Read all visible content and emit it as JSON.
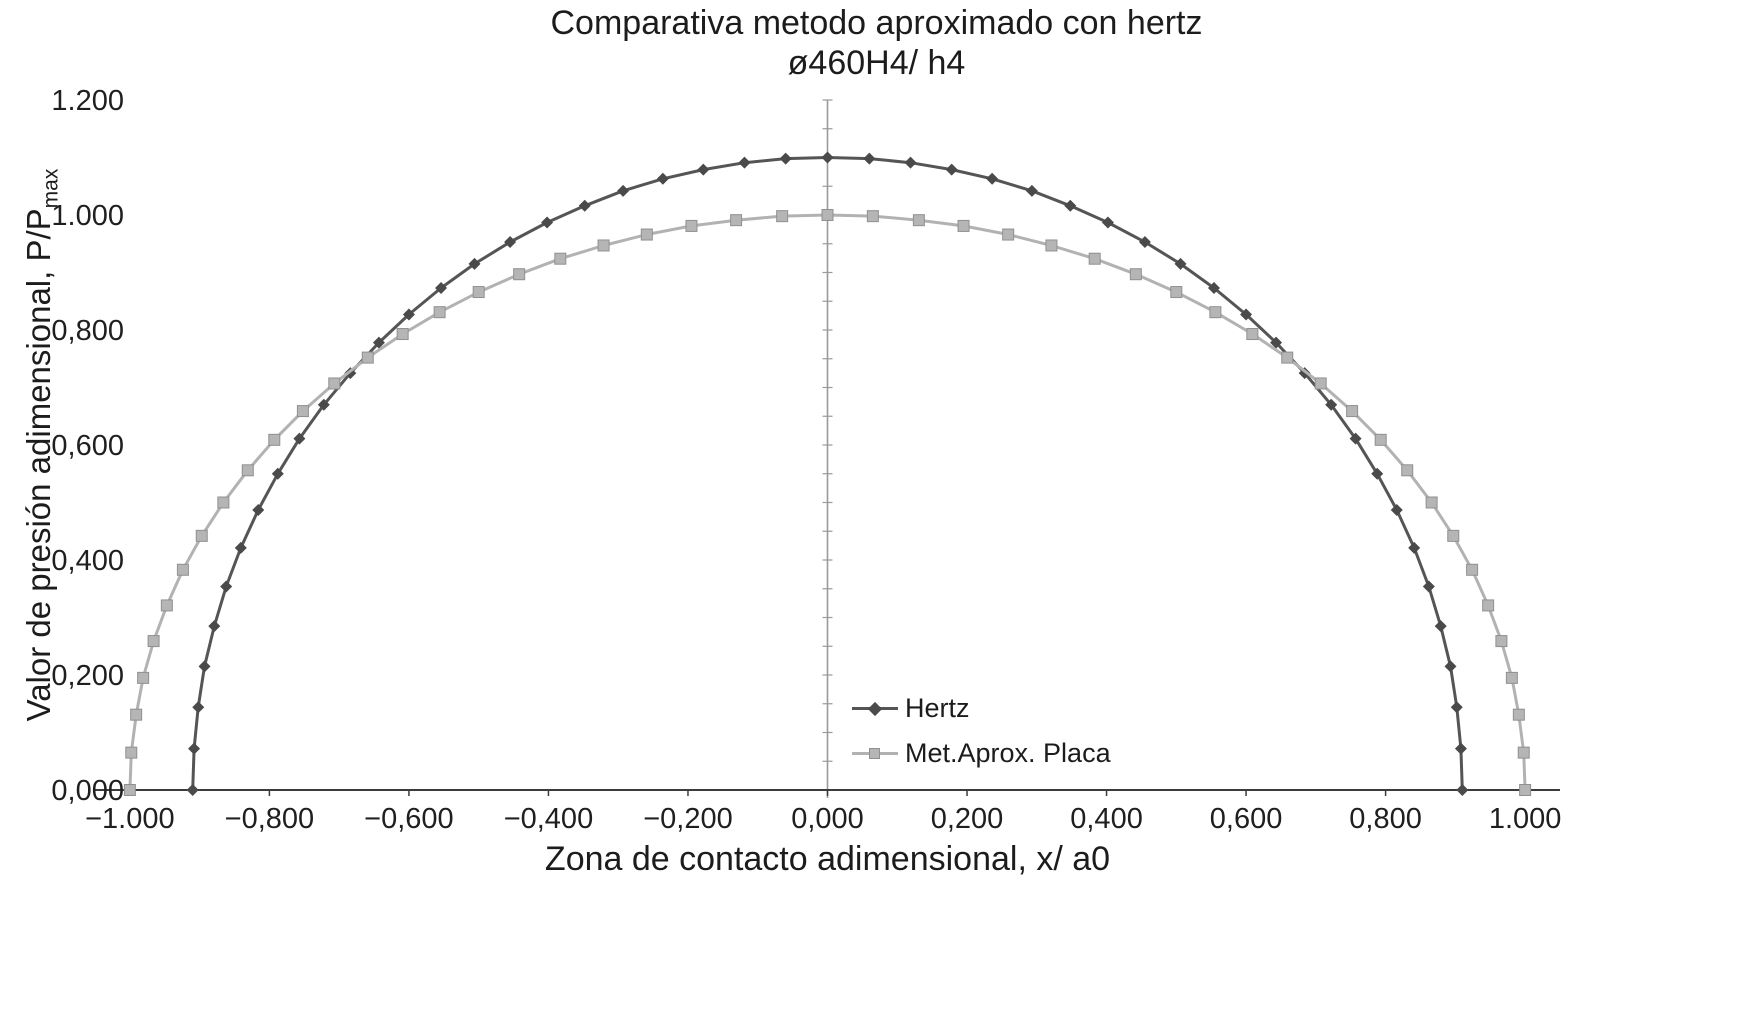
{
  "page": {
    "background": "#ffffff"
  },
  "chart_data": {
    "type": "line",
    "title": "Comparativa metodo aproximado con hertz",
    "subtitle": "ø460H4/ h4",
    "xlabel": "Zona de contacto adimensional, x/ a0",
    "ylabel": "Valor de presión adimensional, P/Pmax",
    "ylabel_main": "Valor de presión adimensional, P/P",
    "ylabel_sub": "max",
    "xlim": [
      -1.05,
      1.05
    ],
    "ylim": [
      0,
      1.2
    ],
    "grid": false,
    "legend_position": "inside plot, right of center vertical axis, lower area",
    "axis_colors": {
      "x_axis": "#3c3c3c",
      "y_axis_center_line": "#9a9a9a"
    },
    "x_ticks": [
      {
        "label": "−1.000",
        "value": -1.0
      },
      {
        "label": "−0,800",
        "value": -0.8
      },
      {
        "label": "−0,600",
        "value": -0.6
      },
      {
        "label": "−0,400",
        "value": -0.4
      },
      {
        "label": "−0,200",
        "value": -0.2
      },
      {
        "label": "0,000",
        "value": 0.0
      },
      {
        "label": "0,200",
        "value": 0.2
      },
      {
        "label": "0,400",
        "value": 0.4
      },
      {
        "label": "0,600",
        "value": 0.6
      },
      {
        "label": "0,800",
        "value": 0.8
      },
      {
        "label": "1.000",
        "value": 1.0
      }
    ],
    "y_ticks": [
      {
        "label": "1.200",
        "value": 1.2
      },
      {
        "label": "1.000",
        "value": 1.0
      },
      {
        "label": "0,800",
        "value": 0.8
      },
      {
        "label": "0,600",
        "value": 0.6
      },
      {
        "label": "0,400",
        "value": 0.4
      },
      {
        "label": "0,200",
        "value": 0.2
      },
      {
        "label": "0,000",
        "value": 0.0
      }
    ],
    "series": [
      {
        "name": "Hertz",
        "color": "#555555",
        "marker": "diamond",
        "marker_color": "#4a4a4a",
        "peak_value": 1.1,
        "contact_half_width": 0.91,
        "points": [
          [
            -0.91,
            0.0
          ],
          [
            -0.908,
            0.072
          ],
          [
            -0.902,
            0.144
          ],
          [
            -0.893,
            0.215
          ],
          [
            -0.879,
            0.285
          ],
          [
            -0.862,
            0.354
          ],
          [
            -0.841,
            0.421
          ],
          [
            -0.816,
            0.487
          ],
          [
            -0.788,
            0.55
          ],
          [
            -0.757,
            0.611
          ],
          [
            -0.722,
            0.67
          ],
          [
            -0.684,
            0.725
          ],
          [
            -0.643,
            0.778
          ],
          [
            -0.6,
            0.827
          ],
          [
            -0.554,
            0.873
          ],
          [
            -0.506,
            0.915
          ],
          [
            -0.455,
            0.953
          ],
          [
            -0.402,
            0.987
          ],
          [
            -0.348,
            1.016
          ],
          [
            -0.293,
            1.042
          ],
          [
            -0.236,
            1.063
          ],
          [
            -0.178,
            1.079
          ],
          [
            -0.119,
            1.091
          ],
          [
            -0.06,
            1.098
          ],
          [
            0.0,
            1.1
          ],
          [
            0.06,
            1.098
          ],
          [
            0.119,
            1.091
          ],
          [
            0.178,
            1.079
          ],
          [
            0.236,
            1.063
          ],
          [
            0.293,
            1.042
          ],
          [
            0.348,
            1.016
          ],
          [
            0.402,
            0.987
          ],
          [
            0.455,
            0.953
          ],
          [
            0.506,
            0.915
          ],
          [
            0.554,
            0.873
          ],
          [
            0.6,
            0.827
          ],
          [
            0.643,
            0.778
          ],
          [
            0.684,
            0.725
          ],
          [
            0.722,
            0.67
          ],
          [
            0.757,
            0.611
          ],
          [
            0.788,
            0.55
          ],
          [
            0.816,
            0.487
          ],
          [
            0.841,
            0.421
          ],
          [
            0.862,
            0.354
          ],
          [
            0.879,
            0.285
          ],
          [
            0.893,
            0.215
          ],
          [
            0.902,
            0.144
          ],
          [
            0.908,
            0.072
          ],
          [
            0.91,
            0.0
          ]
        ]
      },
      {
        "name": "Met.Aprox. Placa",
        "color": "#b2b2b2",
        "marker": "square",
        "marker_color": "#b5b5b5",
        "marker_edge": "#909090",
        "peak_value": 1.0,
        "contact_half_width": 1.0,
        "points": [
          [
            -1.0,
            0.0
          ],
          [
            -0.998,
            0.065
          ],
          [
            -0.991,
            0.131
          ],
          [
            -0.981,
            0.195
          ],
          [
            -0.966,
            0.259
          ],
          [
            -0.947,
            0.321
          ],
          [
            -0.924,
            0.383
          ],
          [
            -0.897,
            0.442
          ],
          [
            -0.866,
            0.5
          ],
          [
            -0.831,
            0.556
          ],
          [
            -0.793,
            0.609
          ],
          [
            -0.752,
            0.659
          ],
          [
            -0.707,
            0.707
          ],
          [
            -0.659,
            0.752
          ],
          [
            -0.609,
            0.793
          ],
          [
            -0.556,
            0.831
          ],
          [
            -0.5,
            0.866
          ],
          [
            -0.442,
            0.897
          ],
          [
            -0.383,
            0.924
          ],
          [
            -0.321,
            0.947
          ],
          [
            -0.259,
            0.966
          ],
          [
            -0.195,
            0.981
          ],
          [
            -0.131,
            0.991
          ],
          [
            -0.065,
            0.998
          ],
          [
            0.0,
            1.0
          ],
          [
            0.065,
            0.998
          ],
          [
            0.131,
            0.991
          ],
          [
            0.195,
            0.981
          ],
          [
            0.259,
            0.966
          ],
          [
            0.321,
            0.947
          ],
          [
            0.383,
            0.924
          ],
          [
            0.442,
            0.897
          ],
          [
            0.5,
            0.866
          ],
          [
            0.556,
            0.831
          ],
          [
            0.609,
            0.793
          ],
          [
            0.659,
            0.752
          ],
          [
            0.707,
            0.707
          ],
          [
            0.752,
            0.659
          ],
          [
            0.793,
            0.609
          ],
          [
            0.831,
            0.556
          ],
          [
            0.866,
            0.5
          ],
          [
            0.897,
            0.442
          ],
          [
            0.924,
            0.383
          ],
          [
            0.947,
            0.321
          ],
          [
            0.966,
            0.259
          ],
          [
            0.981,
            0.195
          ],
          [
            0.991,
            0.131
          ],
          [
            0.998,
            0.065
          ],
          [
            1.0,
            0.0
          ]
        ]
      }
    ]
  }
}
